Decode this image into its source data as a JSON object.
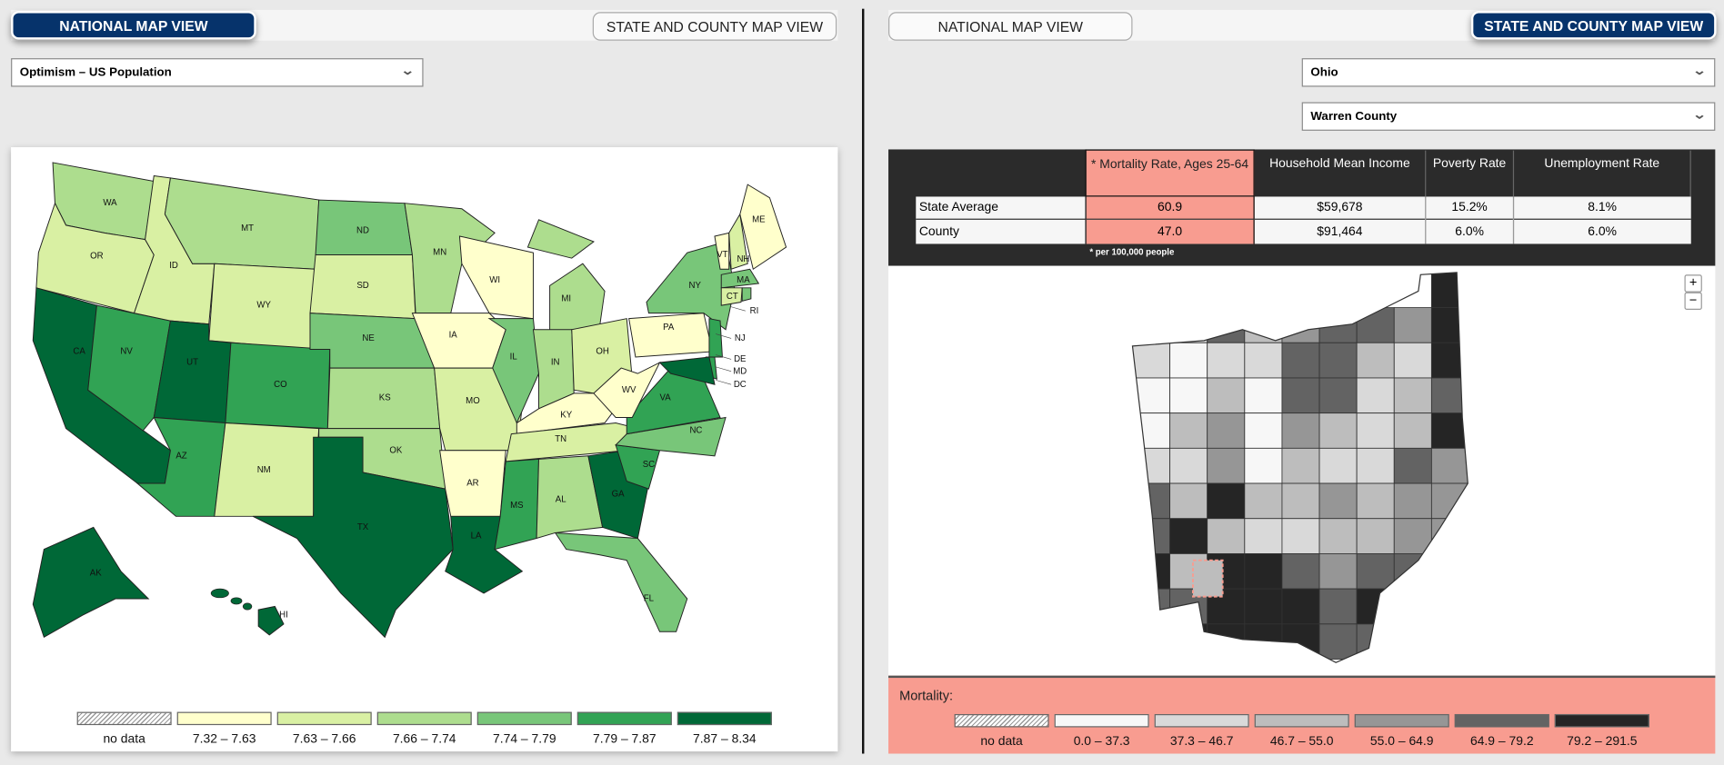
{
  "left": {
    "tabs": {
      "national": "NATIONAL MAP VIEW",
      "state_county": "STATE AND COUNTY MAP VIEW",
      "active": "national"
    },
    "measure_select": {
      "value": "Optimism – US Population"
    },
    "legend": [
      {
        "label": "no data",
        "color": "hatch"
      },
      {
        "label": "7.32 – 7.63",
        "color": "#ffffcc"
      },
      {
        "label": "7.63 – 7.66",
        "color": "#d9f0a3"
      },
      {
        "label": "7.66 – 7.74",
        "color": "#addd8e"
      },
      {
        "label": "7.74 – 7.79",
        "color": "#78c679"
      },
      {
        "label": "7.79 – 7.87",
        "color": "#31a354"
      },
      {
        "label": "7.87 – 8.34",
        "color": "#006837"
      }
    ],
    "state_classes": {
      "WA": 3,
      "OR": 2,
      "CA": 6,
      "NV": 5,
      "ID": 2,
      "MT": 3,
      "WY": 2,
      "UT": 6,
      "AZ": 5,
      "CO": 5,
      "NM": 2,
      "ND": 4,
      "SD": 2,
      "NE": 4,
      "KS": 3,
      "OK": 3,
      "TX": 6,
      "MN": 3,
      "IA": 1,
      "MO": 2,
      "AR": 1,
      "LA": 6,
      "WI": 1,
      "IL": 4,
      "MS": 5,
      "MI": 3,
      "IN": 3,
      "OH": 2,
      "KY": 1,
      "TN": 2,
      "AL": 3,
      "GA": 6,
      "FL": 4,
      "SC": 5,
      "NC": 4,
      "VA": 5,
      "WV": 1,
      "PA": 1,
      "NY": 4,
      "VT": 1,
      "NH": 2,
      "ME": 1,
      "MA": 4,
      "CT": 2,
      "RI": 4,
      "NJ": 5,
      "DE": 5,
      "MD": 6,
      "AK": 6,
      "HI": 6
    }
  },
  "right": {
    "tabs": {
      "national": "NATIONAL MAP VIEW",
      "state_county": "STATE AND COUNTY MAP VIEW",
      "active": "state_county"
    },
    "state_select": {
      "value": "Ohio"
    },
    "county_select": {
      "value": "Warren County"
    },
    "table": {
      "headers": [
        "* Mortality Rate, Ages 25-64",
        "Household Mean Income",
        "Poverty Rate",
        "Unemployment Rate"
      ],
      "rows": [
        {
          "label": "State Average",
          "values": [
            "60.9",
            "$59,678",
            "15.2%",
            "8.1%"
          ]
        },
        {
          "label": "County",
          "values": [
            "47.0",
            "$91,464",
            "6.0%",
            "6.0%"
          ]
        }
      ],
      "footnote": "* per 100,000 people"
    },
    "zoom": {
      "in": "+",
      "out": "−"
    },
    "legend_title": "Mortality:",
    "legend": [
      {
        "label": "no data",
        "color": "hatch"
      },
      {
        "label": "0.0 – 37.3",
        "color": "#f7f7f7"
      },
      {
        "label": "37.3 – 46.7",
        "color": "#d9d9d9"
      },
      {
        "label": "46.7 – 55.0",
        "color": "#bdbdbd"
      },
      {
        "label": "55.0 – 64.9",
        "color": "#969696"
      },
      {
        "label": "64.9 – 79.2",
        "color": "#636363"
      },
      {
        "label": "79.2 – 291.5",
        "color": "#252525"
      }
    ],
    "county_classes": [
      [
        0,
        0,
        0,
        0,
        0,
        0,
        0,
        0,
        6
      ],
      [
        2,
        2,
        5,
        3,
        4,
        5,
        5,
        4,
        6
      ],
      [
        2,
        1,
        2,
        2,
        5,
        5,
        3,
        2,
        6
      ],
      [
        1,
        1,
        3,
        1,
        5,
        5,
        2,
        3,
        5
      ],
      [
        1,
        3,
        4,
        1,
        4,
        3,
        2,
        3,
        6
      ],
      [
        2,
        2,
        4,
        1,
        3,
        2,
        2,
        5,
        4
      ],
      [
        5,
        3,
        6,
        3,
        3,
        4,
        3,
        4,
        4
      ],
      [
        5,
        6,
        3,
        2,
        2,
        3,
        3,
        4,
        4
      ],
      [
        6,
        3,
        6,
        6,
        5,
        4,
        5,
        5,
        4
      ],
      [
        5,
        5,
        6,
        6,
        6,
        5,
        6,
        5,
        4
      ],
      [
        5,
        6,
        6,
        6,
        6,
        5,
        5,
        4,
        4
      ]
    ],
    "selected_county": "Warren County",
    "accent": "#f89c90",
    "navy": "#06336b"
  }
}
